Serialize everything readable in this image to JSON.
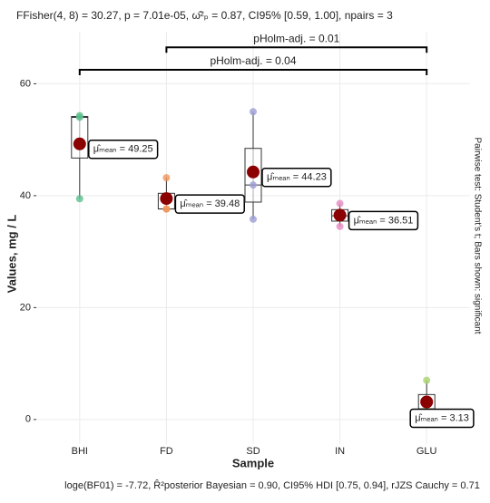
{
  "chart_data": {
    "type": "box",
    "title": "FFisher(4, 8) = 30.27, p = 7.01e-05, ω̂²ₚ = 0.87, CI95% [0.59, 1.00], npairs = 3",
    "caption": "loge(BF01) = -7.72, R̂²posterior Bayesian = 0.90, CI95% HDI [0.75, 0.94], rJZS Cauchy = 0.71",
    "y_label": "Values, mg / L",
    "x_label": "Sample",
    "side_note": "Pairwise test: Student's t; Bars shown: significant",
    "categories": [
      "BHI",
      "FD",
      "SD",
      "IN",
      "GLU"
    ],
    "colors": [
      "#5cbf8f",
      "#f0955a",
      "#9c9ed6",
      "#e58bc0",
      "#a6d36a"
    ],
    "points": [
      [
        54.3,
        54.0,
        39.45
      ],
      [
        43.2,
        37.6,
        37.64
      ],
      [
        55.0,
        35.8,
        41.9
      ],
      [
        38.6,
        36.4,
        34.5
      ],
      [
        7.0,
        1.9,
        0.5
      ]
    ],
    "means": [
      49.25,
      39.48,
      44.23,
      36.51,
      3.13
    ],
    "mean_labels": [
      "μ̂ₘₑₐₙ = 49.25",
      "μ̂ₘₑₐₙ = 39.48",
      "μ̂ₘₑₐₙ = 44.23",
      "μ̂ₘₑₐₙ = 36.51",
      "μ̂ₘₑₐₙ = 3.13"
    ],
    "mean_color": "#8b0000",
    "comparisons": [
      {
        "from": 1,
        "to": 4,
        "label": "pHolm-adj. = 0.01",
        "y": 66.5
      },
      {
        "from": 0,
        "to": 4,
        "label": "pHolm-adj. = 0.04",
        "y": 62.5
      }
    ],
    "ylim": [
      -4.4,
      69.3
    ],
    "yticks": [
      0,
      20,
      40,
      60
    ],
    "grid": true
  }
}
